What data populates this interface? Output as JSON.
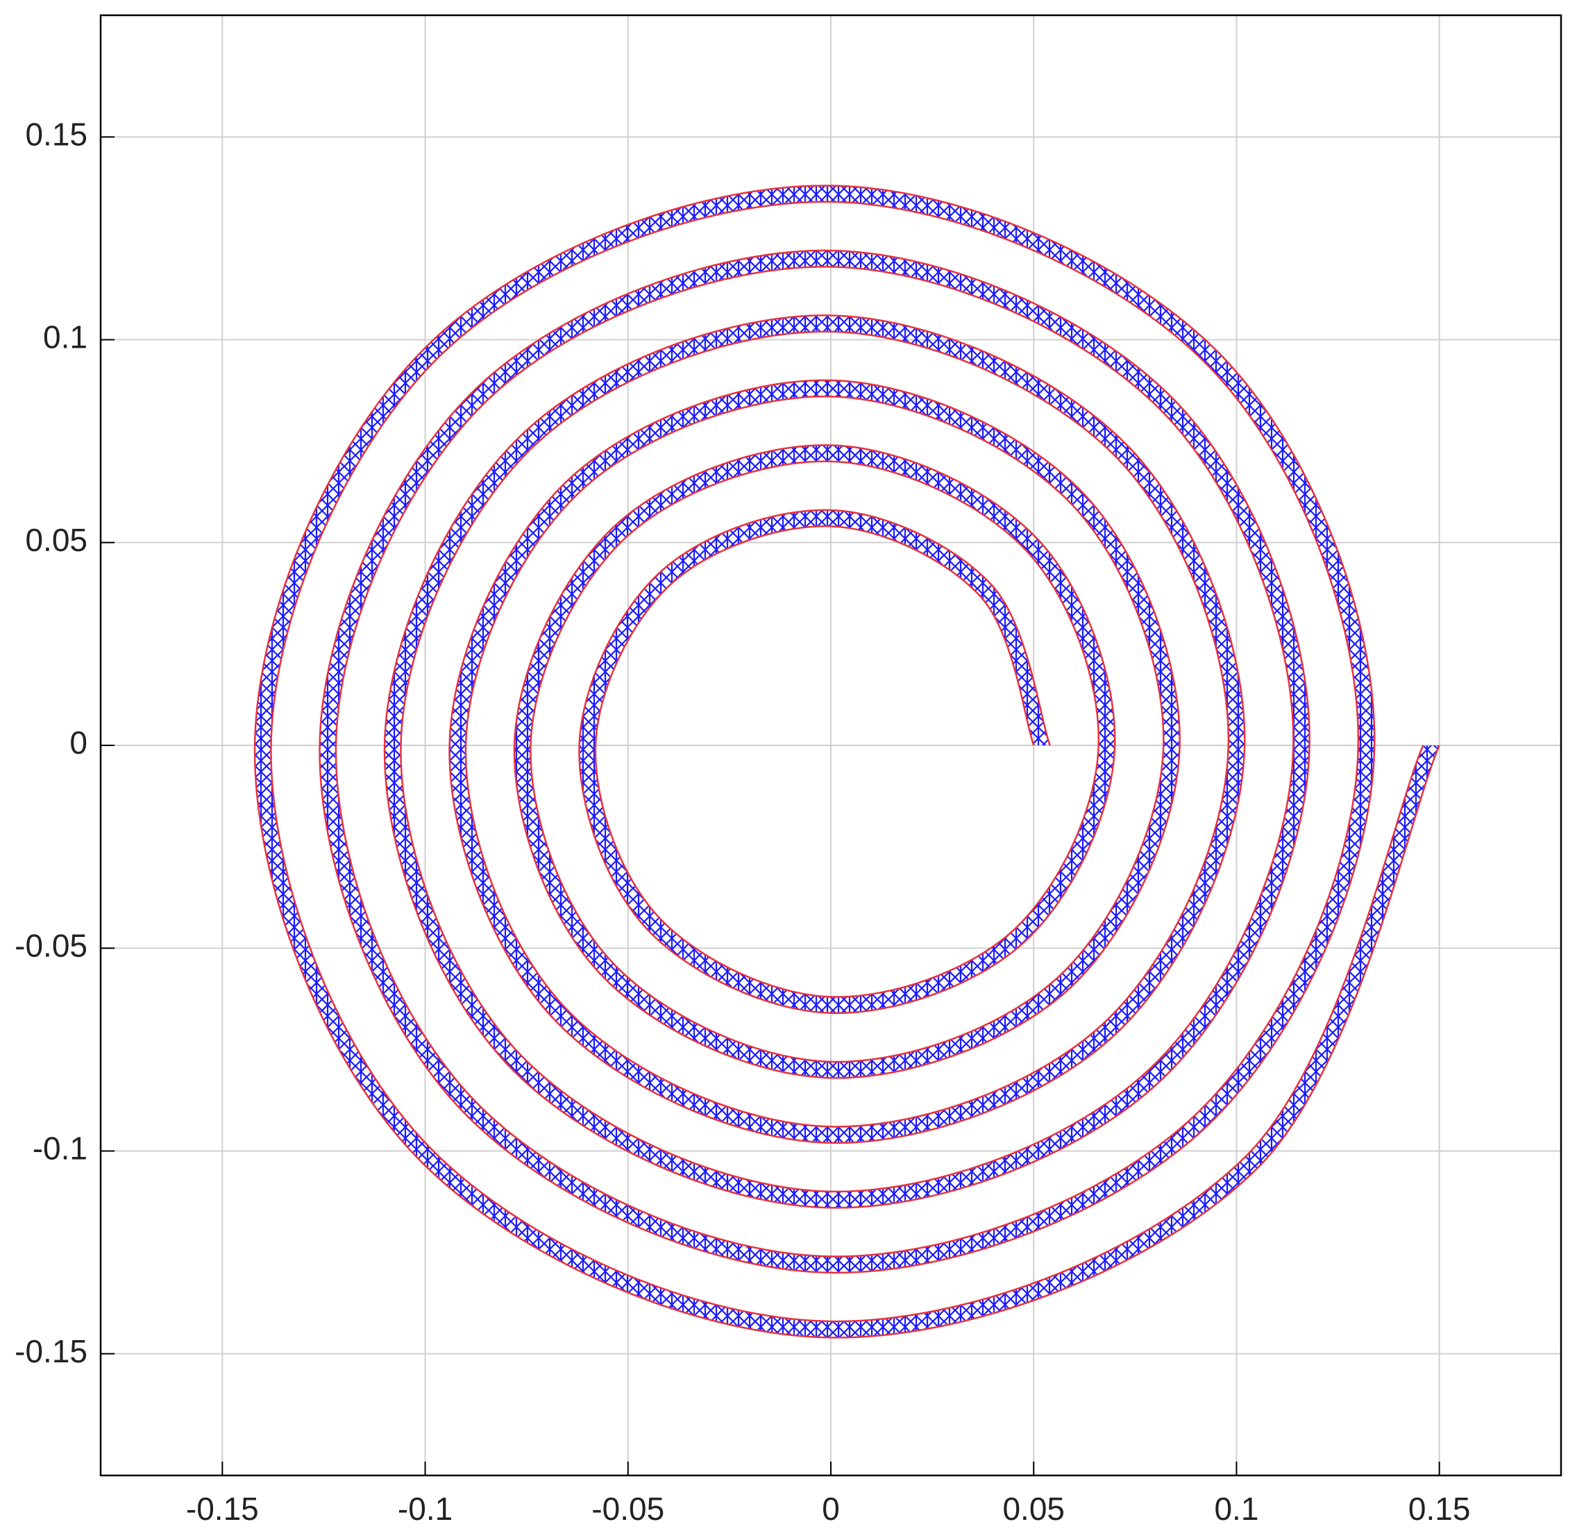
{
  "chart_data": {
    "type": "line",
    "xlim": [
      -0.18,
      0.18
    ],
    "ylim": [
      -0.18,
      0.18
    ],
    "xticks": [
      -0.15,
      -0.1,
      -0.05,
      0,
      0.05,
      0.1,
      0.15
    ],
    "yticks": [
      -0.15,
      -0.1,
      -0.05,
      0,
      0.05,
      0.1,
      0.15
    ],
    "grid": true,
    "mesh_color": "#1a1aff",
    "series": [
      {
        "color": "#e8323c",
        "x": [
          0.054,
          0.0396,
          0,
          -0.0424,
          -0.062,
          -0.0453,
          0,
          0.0481,
          0.07,
          0.0509,
          0,
          -0.0537,
          -0.078,
          -0.0566,
          0,
          0.0594,
          0.086,
          0.0622,
          0,
          -0.0651,
          -0.094,
          -0.0679,
          0,
          0.0707,
          0.102,
          0.0735,
          0,
          -0.0764,
          -0.11,
          -0.0792,
          0,
          0.082,
          0.118,
          0.0849,
          0,
          -0.0877,
          -0.126,
          -0.0905,
          0,
          0.0933,
          0.134,
          0.0962,
          0,
          -0.099,
          -0.142,
          -0.1018,
          0,
          0.1047,
          0.15
        ],
        "y": [
          0,
          0.0396,
          0.058,
          0.0424,
          0,
          -0.0453,
          -0.066,
          -0.0481,
          0,
          0.0509,
          0.074,
          0.0537,
          0,
          -0.0566,
          -0.082,
          -0.0594,
          0,
          0.0622,
          0.09,
          0.0651,
          0,
          -0.0679,
          -0.098,
          -0.0707,
          0,
          0.0735,
          0.106,
          0.0764,
          0,
          -0.0792,
          -0.114,
          -0.082,
          0,
          0.0849,
          0.122,
          0.0877,
          0,
          -0.0905,
          -0.13,
          -0.0933,
          0,
          0.0962,
          0.138,
          0.099,
          0,
          -0.1018,
          -0.146,
          -0.1047,
          0
        ]
      },
      {
        "color": "#e8323c",
        "x": [
          0.05,
          0.0368,
          0,
          -0.0396,
          -0.058,
          -0.0424,
          0,
          0.0453,
          0.066,
          0.0481,
          0,
          -0.0509,
          -0.074,
          -0.0537,
          0,
          0.0566,
          0.082,
          0.0594,
          0,
          -0.0622,
          -0.09,
          -0.0651,
          0,
          0.0679,
          0.098,
          0.0707,
          0,
          -0.0735,
          -0.106,
          -0.0764,
          0,
          0.0792,
          0.114,
          0.082,
          0,
          -0.0849,
          -0.122,
          -0.0877,
          0,
          0.0905,
          0.13,
          0.0933,
          0,
          -0.0962,
          -0.138,
          -0.099,
          0,
          0.1018,
          0.146
        ],
        "y": [
          0,
          0.0368,
          0.054,
          0.0396,
          0,
          -0.0424,
          -0.062,
          -0.0453,
          0,
          0.0481,
          0.07,
          0.0509,
          0,
          -0.0537,
          -0.078,
          -0.0566,
          0,
          0.0594,
          0.086,
          0.0622,
          0,
          -0.0651,
          -0.094,
          -0.0679,
          0,
          0.0707,
          0.102,
          0.0735,
          0,
          -0.0764,
          -0.11,
          -0.0792,
          0,
          0.082,
          0.118,
          0.0849,
          0,
          -0.0877,
          -0.126,
          -0.0905,
          0,
          0.0933,
          0.134,
          0.0962,
          0,
          -0.099,
          -0.142,
          -0.1018,
          0
        ]
      }
    ]
  }
}
